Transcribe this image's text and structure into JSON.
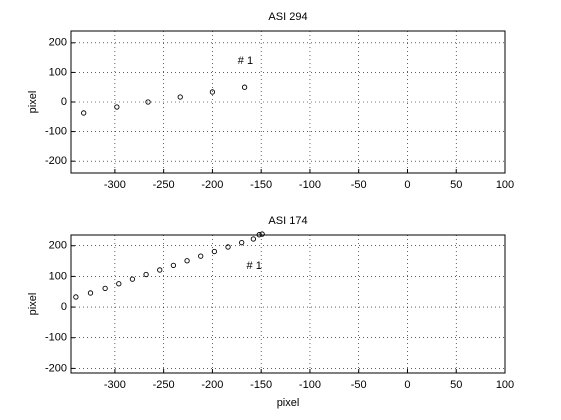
{
  "chart_data": [
    {
      "type": "scatter",
      "title": "ASI 294",
      "y_label": "pixel",
      "x": [
        -332,
        -298,
        -266,
        -233,
        -200,
        -167
      ],
      "series": [
        {
          "color": "#000000",
          "values": [
            -37,
            -17,
            0,
            17,
            34,
            50
          ]
        }
      ],
      "xlim": [
        -345,
        100
      ],
      "ylim": [
        -240,
        240
      ],
      "xticks": [
        -300,
        -250,
        -200,
        -150,
        -100,
        -50,
        0,
        50,
        100
      ],
      "yticks": [
        -200,
        -100,
        0,
        100,
        200
      ],
      "grid": true,
      "annotations": [
        {
          "text": "# 1",
          "x": -174,
          "y": 138
        }
      ]
    },
    {
      "type": "scatter",
      "title": "ASI 174",
      "x_label": "pixel",
      "y_label": "pixel",
      "x": [
        -340,
        -325,
        -310,
        -296,
        -282,
        -268,
        -254,
        -240,
        -226,
        -212,
        -198,
        -184,
        -170,
        -158,
        -152,
        -149
      ],
      "series": [
        {
          "color": "#000000",
          "values": [
            33,
            46,
            61,
            76,
            91,
            106,
            121,
            136,
            151,
            166,
            181,
            196,
            210,
            222,
            236,
            238
          ]
        }
      ],
      "xlim": [
        -345,
        100
      ],
      "ylim": [
        -215,
        235
      ],
      "xticks": [
        -300,
        -250,
        -200,
        -150,
        -100,
        -50,
        0,
        50,
        100
      ],
      "yticks": [
        -200,
        -100,
        0,
        100,
        200
      ],
      "grid": true,
      "annotations": [
        {
          "text": "# 1",
          "x": -165,
          "y": 134
        }
      ]
    }
  ]
}
